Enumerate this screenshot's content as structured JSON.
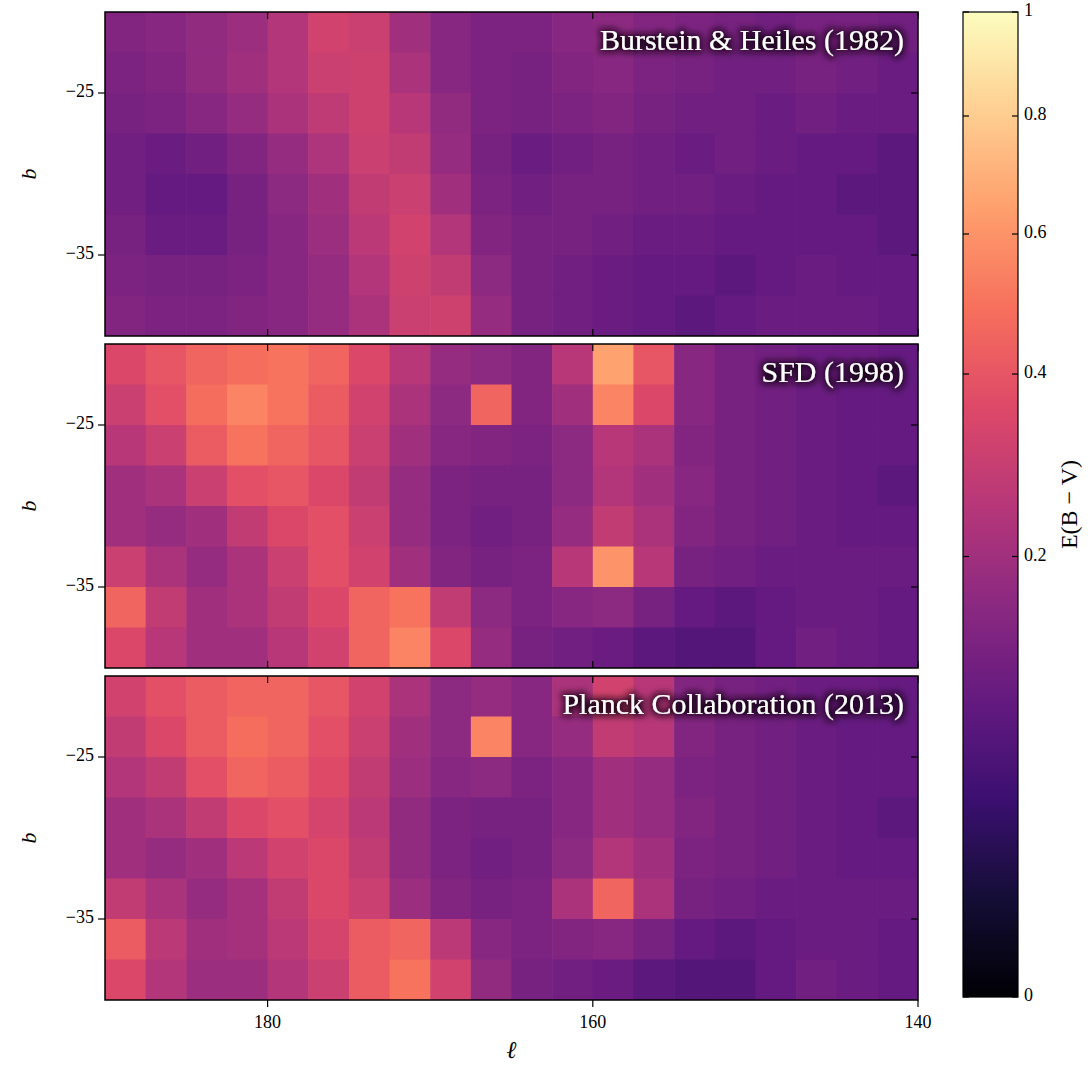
{
  "chart_data": [
    {
      "type": "heatmap",
      "title": "Burstein & Heiles (1982)",
      "ylabel": "b",
      "xlim": [
        190,
        140
      ],
      "ylim": [
        -40,
        -20
      ],
      "xticks": [
        180,
        160,
        140
      ],
      "yticks": [
        {
          "value": -25,
          "label": "−25"
        },
        {
          "value": -35,
          "label": "−35"
        }
      ],
      "tick_labels": "y",
      "color": "magma",
      "x": [
        188.75,
        186.25,
        183.75,
        181.25,
        178.75,
        176.25,
        173.75,
        171.25,
        168.75,
        166.25,
        163.75,
        161.25,
        158.75,
        156.25,
        153.75,
        151.25,
        148.75,
        146.25,
        143.75,
        141.25
      ],
      "y": [
        -21.25,
        -23.75,
        -26.25,
        -28.75,
        -31.25,
        -33.75,
        -36.25,
        -38.75
      ],
      "cells": [
        [
          0.14,
          0.15,
          0.17,
          0.19,
          0.24,
          0.32,
          0.3,
          0.2,
          0.15,
          0.13,
          0.13,
          0.15,
          0.16,
          0.14,
          0.13,
          0.12,
          0.11,
          0.12,
          0.12,
          0.11
        ],
        [
          0.13,
          0.14,
          0.17,
          0.2,
          0.24,
          0.3,
          0.31,
          0.22,
          0.15,
          0.13,
          0.12,
          0.14,
          0.15,
          0.13,
          0.12,
          0.11,
          0.11,
          0.12,
          0.11,
          0.1
        ],
        [
          0.12,
          0.13,
          0.15,
          0.18,
          0.22,
          0.27,
          0.31,
          0.25,
          0.17,
          0.13,
          0.12,
          0.13,
          0.14,
          0.12,
          0.11,
          0.11,
          0.1,
          0.11,
          0.1,
          0.1
        ],
        [
          0.11,
          0.1,
          0.11,
          0.14,
          0.18,
          0.23,
          0.3,
          0.28,
          0.18,
          0.12,
          0.1,
          0.11,
          0.12,
          0.11,
          0.1,
          0.11,
          0.1,
          0.09,
          0.09,
          0.08
        ],
        [
          0.11,
          0.09,
          0.09,
          0.12,
          0.16,
          0.2,
          0.28,
          0.3,
          0.2,
          0.13,
          0.11,
          0.12,
          0.12,
          0.11,
          0.11,
          0.1,
          0.09,
          0.09,
          0.08,
          0.08
        ],
        [
          0.12,
          0.1,
          0.1,
          0.12,
          0.15,
          0.19,
          0.26,
          0.32,
          0.24,
          0.14,
          0.12,
          0.12,
          0.11,
          0.1,
          0.1,
          0.09,
          0.09,
          0.09,
          0.09,
          0.08
        ],
        [
          0.13,
          0.12,
          0.12,
          0.13,
          0.15,
          0.18,
          0.24,
          0.31,
          0.28,
          0.16,
          0.12,
          0.11,
          0.1,
          0.09,
          0.09,
          0.08,
          0.09,
          0.1,
          0.09,
          0.09
        ],
        [
          0.14,
          0.13,
          0.13,
          0.14,
          0.15,
          0.18,
          0.22,
          0.3,
          0.31,
          0.18,
          0.12,
          0.11,
          0.1,
          0.09,
          0.08,
          0.09,
          0.1,
          0.1,
          0.1,
          0.09
        ]
      ]
    },
    {
      "type": "heatmap",
      "title": "SFD (1998)",
      "ylabel": "b",
      "xlim": [
        190,
        140
      ],
      "ylim": [
        -40,
        -20
      ],
      "xticks": [
        180,
        160,
        140
      ],
      "yticks": [
        {
          "value": -25,
          "label": "−25"
        },
        {
          "value": -35,
          "label": "−35"
        }
      ],
      "tick_labels": "y",
      "color": "magma",
      "x": [
        188.75,
        186.25,
        183.75,
        181.25,
        178.75,
        176.25,
        173.75,
        171.25,
        168.75,
        166.25,
        163.75,
        161.25,
        158.75,
        156.25,
        153.75,
        151.25,
        148.75,
        146.25,
        143.75,
        141.25
      ],
      "y": [
        -21.25,
        -23.75,
        -26.25,
        -28.75,
        -31.25,
        -33.75,
        -36.25,
        -38.75
      ],
      "cells": [
        [
          0.35,
          0.4,
          0.45,
          0.48,
          0.5,
          0.45,
          0.35,
          0.25,
          0.18,
          0.16,
          0.14,
          0.25,
          0.65,
          0.4,
          0.15,
          0.12,
          0.11,
          0.1,
          0.1,
          0.09
        ],
        [
          0.3,
          0.38,
          0.48,
          0.55,
          0.5,
          0.42,
          0.32,
          0.22,
          0.16,
          0.45,
          0.14,
          0.2,
          0.55,
          0.35,
          0.15,
          0.12,
          0.11,
          0.1,
          0.09,
          0.09
        ],
        [
          0.25,
          0.3,
          0.42,
          0.5,
          0.45,
          0.4,
          0.3,
          0.2,
          0.15,
          0.14,
          0.13,
          0.16,
          0.25,
          0.22,
          0.14,
          0.12,
          0.11,
          0.1,
          0.09,
          0.09
        ],
        [
          0.2,
          0.22,
          0.3,
          0.38,
          0.4,
          0.35,
          0.28,
          0.18,
          0.13,
          0.12,
          0.12,
          0.16,
          0.24,
          0.2,
          0.15,
          0.12,
          0.11,
          0.1,
          0.09,
          0.08
        ],
        [
          0.2,
          0.18,
          0.2,
          0.28,
          0.35,
          0.38,
          0.3,
          0.18,
          0.13,
          0.11,
          0.12,
          0.18,
          0.28,
          0.22,
          0.14,
          0.12,
          0.11,
          0.1,
          0.09,
          0.09
        ],
        [
          0.3,
          0.22,
          0.18,
          0.22,
          0.3,
          0.38,
          0.32,
          0.2,
          0.14,
          0.12,
          0.13,
          0.25,
          0.6,
          0.25,
          0.12,
          0.11,
          0.1,
          0.1,
          0.1,
          0.1
        ],
        [
          0.45,
          0.28,
          0.2,
          0.22,
          0.28,
          0.35,
          0.45,
          0.5,
          0.28,
          0.16,
          0.13,
          0.15,
          0.16,
          0.12,
          0.09,
          0.08,
          0.09,
          0.1,
          0.1,
          0.09
        ],
        [
          0.35,
          0.25,
          0.2,
          0.2,
          0.25,
          0.32,
          0.45,
          0.55,
          0.35,
          0.18,
          0.12,
          0.11,
          0.1,
          0.08,
          0.07,
          0.07,
          0.09,
          0.11,
          0.1,
          0.09
        ]
      ]
    },
    {
      "type": "heatmap",
      "title": "Planck Collaboration (2013)",
      "xlabel": "ℓ",
      "ylabel": "b",
      "xlim": [
        190,
        140
      ],
      "ylim": [
        -40,
        -20
      ],
      "xticks": [
        180,
        160,
        140
      ],
      "yticks": [
        {
          "value": -25,
          "label": "−25"
        },
        {
          "value": -35,
          "label": "−35"
        }
      ],
      "color": "magma",
      "x": [
        188.75,
        186.25,
        183.75,
        181.25,
        178.75,
        176.25,
        173.75,
        171.25,
        168.75,
        166.25,
        163.75,
        161.25,
        158.75,
        156.25,
        153.75,
        151.25,
        148.75,
        146.25,
        143.75,
        141.25
      ],
      "y": [
        -21.25,
        -23.75,
        -26.25,
        -28.75,
        -31.25,
        -33.75,
        -36.25,
        -38.75
      ],
      "cells": [
        [
          0.32,
          0.38,
          0.42,
          0.45,
          0.45,
          0.4,
          0.32,
          0.22,
          0.16,
          0.18,
          0.15,
          0.22,
          0.32,
          0.25,
          0.14,
          0.12,
          0.11,
          0.1,
          0.1,
          0.09
        ],
        [
          0.28,
          0.35,
          0.42,
          0.48,
          0.45,
          0.38,
          0.3,
          0.2,
          0.16,
          0.55,
          0.15,
          0.18,
          0.28,
          0.25,
          0.14,
          0.12,
          0.11,
          0.1,
          0.09,
          0.09
        ],
        [
          0.24,
          0.28,
          0.38,
          0.45,
          0.42,
          0.36,
          0.28,
          0.19,
          0.15,
          0.16,
          0.13,
          0.15,
          0.2,
          0.18,
          0.13,
          0.12,
          0.11,
          0.1,
          0.09,
          0.09
        ],
        [
          0.2,
          0.22,
          0.28,
          0.35,
          0.38,
          0.33,
          0.26,
          0.17,
          0.13,
          0.12,
          0.12,
          0.15,
          0.2,
          0.18,
          0.14,
          0.12,
          0.11,
          0.1,
          0.09,
          0.08
        ],
        [
          0.2,
          0.18,
          0.2,
          0.26,
          0.32,
          0.35,
          0.28,
          0.17,
          0.13,
          0.11,
          0.12,
          0.16,
          0.24,
          0.2,
          0.13,
          0.12,
          0.11,
          0.1,
          0.09,
          0.09
        ],
        [
          0.28,
          0.22,
          0.18,
          0.21,
          0.28,
          0.35,
          0.3,
          0.19,
          0.14,
          0.12,
          0.13,
          0.22,
          0.45,
          0.22,
          0.12,
          0.11,
          0.1,
          0.1,
          0.1,
          0.1
        ],
        [
          0.42,
          0.26,
          0.2,
          0.21,
          0.26,
          0.33,
          0.42,
          0.45,
          0.26,
          0.15,
          0.13,
          0.14,
          0.15,
          0.12,
          0.09,
          0.08,
          0.09,
          0.1,
          0.1,
          0.09
        ],
        [
          0.35,
          0.24,
          0.19,
          0.19,
          0.24,
          0.3,
          0.42,
          0.5,
          0.32,
          0.17,
          0.12,
          0.11,
          0.1,
          0.08,
          0.07,
          0.07,
          0.09,
          0.11,
          0.1,
          0.09
        ]
      ]
    }
  ],
  "colorbar": {
    "label": "E(B − V)",
    "range": [
      0,
      1
    ],
    "ticks": [
      0,
      0.2,
      0.4,
      0.6,
      0.8,
      1
    ],
    "color": "magma"
  }
}
